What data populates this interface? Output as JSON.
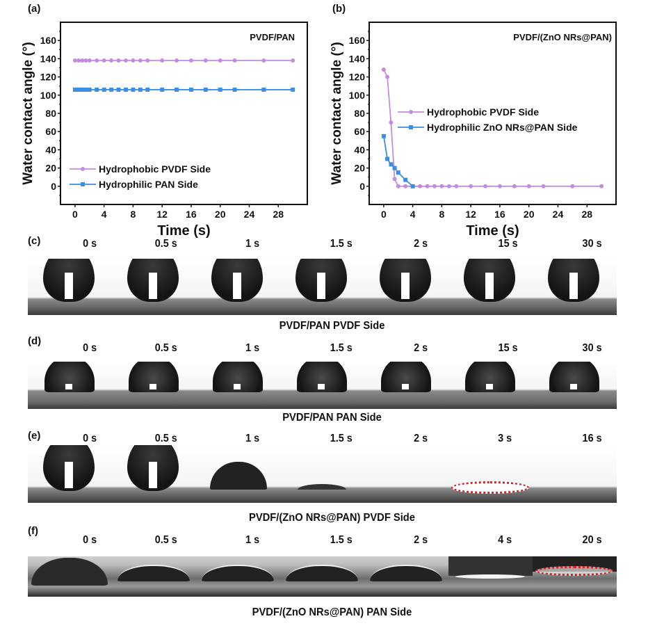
{
  "colors": {
    "pvdf": "#c48be0",
    "pan": "#3a8ee6",
    "highlight": "#e02020"
  },
  "chart_data": [
    {
      "panel": "(a)",
      "type": "line",
      "annotation": "PVDF/PAN",
      "xlabel": "Time (s)",
      "ylabel": "Water contact angle (°)",
      "xlim": [
        -2,
        32
      ],
      "ylim": [
        -20,
        180
      ],
      "xticks": [
        0,
        4,
        8,
        12,
        16,
        20,
        24,
        28
      ],
      "yticks": [
        0,
        20,
        40,
        60,
        80,
        100,
        120,
        140,
        160
      ],
      "legend": "lower-left",
      "series": [
        {
          "name": "Hydrophobic PVDF Side",
          "marker": "circle",
          "color": "#c48be0",
          "x": [
            0,
            0.5,
            1,
            1.5,
            2,
            3,
            4,
            5,
            6,
            7,
            8,
            9,
            10,
            12,
            14,
            16,
            18,
            20,
            22,
            26,
            30
          ],
          "y": [
            138,
            138,
            138,
            138,
            138,
            138,
            138,
            138,
            138,
            138,
            138,
            138,
            138,
            138,
            138,
            138,
            138,
            138,
            138,
            138,
            138
          ]
        },
        {
          "name": "Hydrophilic PAN Side",
          "marker": "square",
          "color": "#3a8ee6",
          "x": [
            0,
            0.5,
            1,
            1.5,
            2,
            3,
            4,
            5,
            6,
            7,
            8,
            9,
            10,
            12,
            14,
            16,
            18,
            20,
            22,
            26,
            30
          ],
          "y": [
            106,
            106,
            106,
            106,
            106,
            106,
            106,
            106,
            106,
            106,
            106,
            106,
            106,
            106,
            106,
            106,
            106,
            106,
            106,
            106,
            106
          ]
        }
      ]
    },
    {
      "panel": "(b)",
      "type": "line",
      "annotation": "PVDF/(ZnO NRs@PAN)",
      "xlabel": "Time (s)",
      "ylabel": "Water contact angle (°)",
      "xlim": [
        -2,
        32
      ],
      "ylim": [
        -20,
        180
      ],
      "xticks": [
        0,
        4,
        8,
        12,
        16,
        20,
        24,
        28
      ],
      "yticks": [
        0,
        20,
        40,
        60,
        80,
        100,
        120,
        140,
        160
      ],
      "legend": "center",
      "series": [
        {
          "name": "Hydrophobic PVDF Side",
          "marker": "circle",
          "color": "#c48be0",
          "x": [
            0,
            0.5,
            1,
            1.5,
            2,
            3,
            4,
            5,
            6,
            7,
            8,
            9,
            10,
            12,
            14,
            16,
            18,
            20,
            22,
            26,
            30
          ],
          "y": [
            128,
            120,
            70,
            8,
            0,
            0,
            0,
            0,
            0,
            0,
            0,
            0,
            0,
            0,
            0,
            0,
            0,
            0,
            0,
            0,
            0
          ]
        },
        {
          "name": "Hydrophilic ZnO NRs@PAN Side",
          "marker": "square",
          "color": "#3a8ee6",
          "x": [
            0,
            0.5,
            1,
            1.5,
            2,
            3,
            4
          ],
          "y": [
            55,
            30,
            24,
            20,
            15,
            7,
            0
          ]
        }
      ]
    }
  ],
  "photo_rows": [
    {
      "panel": "(c)",
      "times": [
        "0 s",
        "0.5 s",
        "1 s",
        "1.5 s",
        "2 s",
        "15 s",
        "30 s"
      ],
      "caption": "PVDF/PAN  PVDF Side"
    },
    {
      "panel": "(d)",
      "times": [
        "0 s",
        "0.5 s",
        "1 s",
        "1.5 s",
        "2 s",
        "15 s",
        "30 s"
      ],
      "caption": "PVDF/PAN  PAN Side"
    },
    {
      "panel": "(e)",
      "times": [
        "0 s",
        "0.5 s",
        "1 s",
        "1.5 s",
        "2 s",
        "3 s",
        "16 s"
      ],
      "caption": "PVDF/(ZnO NRs@PAN)  PVDF Side"
    },
    {
      "panel": "(f)",
      "times": [
        "0 s",
        "0.5 s",
        "1 s",
        "1.5 s",
        "2 s",
        "4 s",
        "20 s"
      ],
      "caption": "PVDF/(ZnO NRs@PAN)  PAN Side"
    }
  ]
}
